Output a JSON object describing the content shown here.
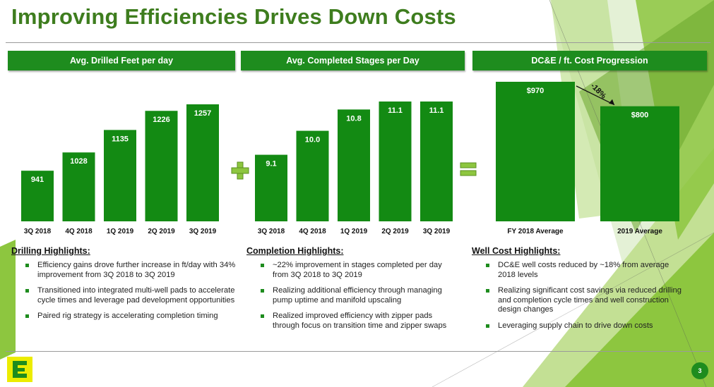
{
  "title": "Improving Efficiencies Drives Down Costs",
  "panels": [
    {
      "header": "Avg. Drilled Feet per day",
      "section_title": "Drilling Highlights:",
      "bullets": [
        "Efficiency gains drove further increase in ft/day with 34% improvement from 3Q 2018 to 3Q 2019",
        "Transitioned into integrated multi-well pads to accelerate cycle times and leverage pad development opportunities",
        "Paired rig strategy is accelerating completion timing"
      ]
    },
    {
      "header": "Avg. Completed Stages per Day",
      "section_title": "Completion Highlights:",
      "bullets": [
        "~22% improvement in stages completed per day from 3Q 2018 to 3Q 2019",
        "Realizing additional efficiency through managing pump uptime and manifold upscaling",
        "Realized improved efficiency with zipper pads through focus on transition time and zipper swaps"
      ]
    },
    {
      "header": "DC&E / ft. Cost Progression",
      "section_title": "Well Cost Highlights:",
      "bullets": [
        "DC&E well costs reduced by ~18% from average 2018 levels",
        "Realizing significant cost savings via reduced drilling and completion cycle times and well construction design changes",
        "Leveraging supply chain to drive down costs"
      ]
    }
  ],
  "operators": {
    "plus": "plus-sign",
    "equals": "equals-sign"
  },
  "chart_data": [
    {
      "type": "bar",
      "categories": [
        "3Q 2018",
        "4Q 2018",
        "1Q 2019",
        "2Q 2019",
        "3Q 2019"
      ],
      "values": [
        941,
        1028,
        1135,
        1226,
        1257
      ],
      "labels": [
        "941",
        "1028",
        "1135",
        "1226",
        "1257"
      ],
      "title": "Avg. Drilled Feet per day"
    },
    {
      "type": "bar",
      "categories": [
        "3Q 2018",
        "4Q 2018",
        "1Q 2019",
        "2Q 2019",
        "3Q 2019"
      ],
      "values": [
        9.1,
        10.0,
        10.8,
        11.1,
        11.1
      ],
      "labels": [
        "9.1",
        "10.0",
        "10.8",
        "11.1",
        "11.1"
      ],
      "title": "Avg. Completed Stages per Day"
    },
    {
      "type": "bar",
      "categories": [
        "FY 2018 Average",
        "2019 Average"
      ],
      "values": [
        970,
        800
      ],
      "labels": [
        "$970",
        "$800"
      ],
      "title": "DC&E / ft. Cost Progression",
      "annotation": "-18%"
    }
  ],
  "page_number": "3",
  "colors": {
    "bar": "#138a13",
    "title": "#3e7d1e",
    "accent": "#8dc63f",
    "logo": "#ecec00"
  }
}
